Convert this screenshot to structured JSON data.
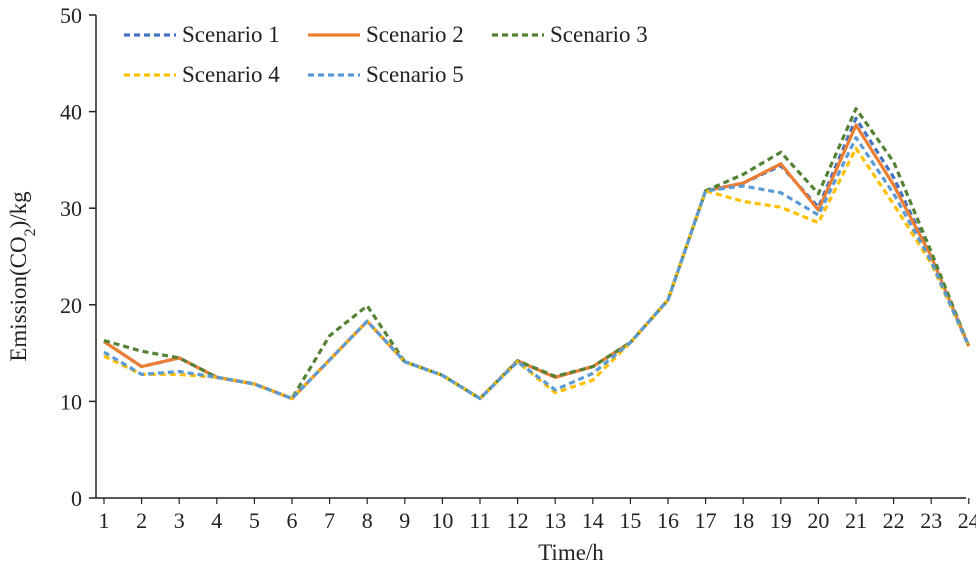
{
  "chart_data": {
    "type": "line",
    "title": "",
    "xlabel": "Time/h",
    "ylabel_parts": {
      "pre": "Emission(CO",
      "sub": "2",
      "post": ")/kg"
    },
    "ylim": [
      0,
      50
    ],
    "yticks": [
      0,
      10,
      20,
      30,
      40,
      50
    ],
    "x": [
      1,
      2,
      3,
      4,
      5,
      6,
      7,
      8,
      9,
      10,
      11,
      12,
      13,
      14,
      15,
      16,
      17,
      18,
      19,
      20,
      21,
      22,
      23,
      24
    ],
    "grid": false,
    "legend_placement": "top-left",
    "series": [
      {
        "name": "Scenario 1",
        "color": "#4472c4",
        "dash": "dashed",
        "values": [
          16.2,
          13.6,
          14.5,
          12.5,
          11.8,
          10.3,
          14.3,
          18.3,
          14.1,
          12.7,
          10.3,
          14.2,
          12.5,
          13.6,
          16.1,
          20.5,
          31.8,
          32.6,
          34.4,
          30.1,
          39.3,
          33.2,
          25.0,
          15.7
        ]
      },
      {
        "name": "Scenario 2",
        "color": "#ed7d31",
        "dash": "solid",
        "values": [
          16.2,
          13.6,
          14.5,
          12.5,
          11.8,
          10.3,
          14.3,
          18.3,
          14.1,
          12.7,
          10.3,
          14.2,
          12.5,
          13.6,
          16.1,
          20.5,
          31.8,
          32.6,
          34.6,
          29.8,
          38.6,
          32.4,
          25.0,
          15.7
        ]
      },
      {
        "name": "Scenario 3",
        "color": "#548235",
        "dash": "dashed",
        "values": [
          16.3,
          15.2,
          14.5,
          12.5,
          11.8,
          10.3,
          16.8,
          19.9,
          14.1,
          12.7,
          10.3,
          14.2,
          12.6,
          13.6,
          16.1,
          20.5,
          31.8,
          33.5,
          35.8,
          31.5,
          40.3,
          34.8,
          25.5,
          15.7
        ]
      },
      {
        "name": "Scenario 4",
        "color": "#ffc000",
        "dash": "dashed",
        "values": [
          14.7,
          12.8,
          12.8,
          12.5,
          11.8,
          10.3,
          14.3,
          18.3,
          14.1,
          12.7,
          10.3,
          14.1,
          10.9,
          12.2,
          16.1,
          20.5,
          31.8,
          30.7,
          30.1,
          28.5,
          36.2,
          30.4,
          24.3,
          15.7
        ]
      },
      {
        "name": "Scenario 5",
        "color": "#5b9bd5",
        "dash": "dashed",
        "values": [
          15.1,
          12.8,
          13.1,
          12.5,
          11.8,
          10.3,
          14.3,
          18.3,
          14.1,
          12.7,
          10.3,
          14.1,
          11.2,
          12.9,
          16.1,
          20.5,
          31.8,
          32.3,
          31.6,
          29.3,
          37.3,
          31.5,
          24.5,
          15.7
        ]
      }
    ]
  }
}
